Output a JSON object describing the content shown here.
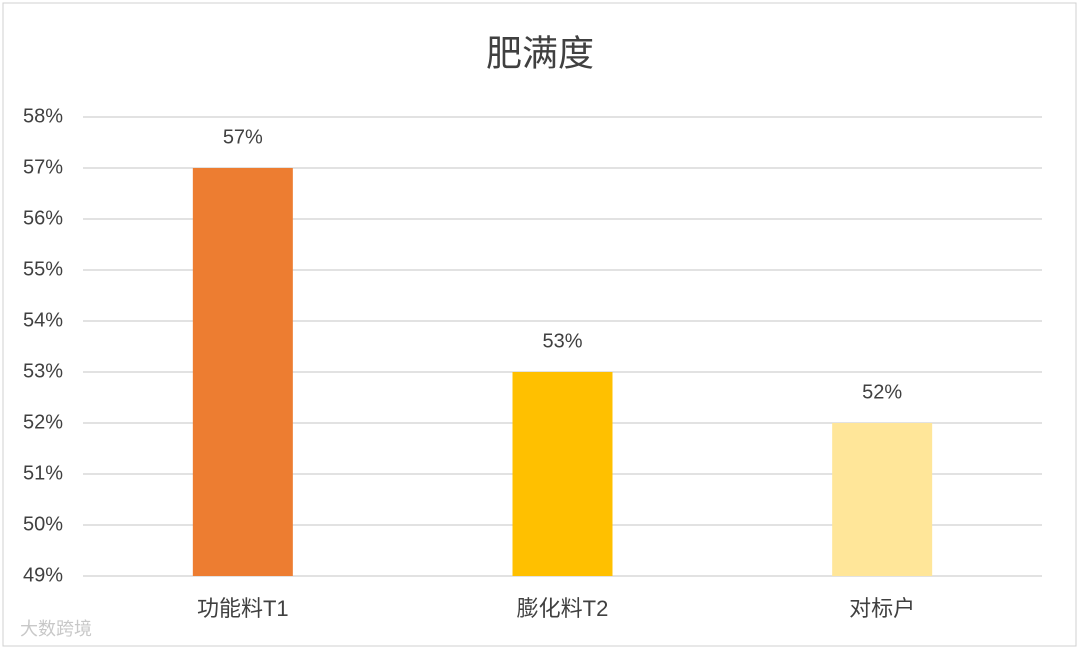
{
  "chart_data": {
    "type": "bar",
    "title": "肥满度",
    "categories": [
      "功能料T1",
      "膨化料T2",
      "对标户"
    ],
    "values": [
      57,
      53,
      52
    ],
    "value_labels": [
      "57%",
      "53%",
      "52%"
    ],
    "colors": [
      "#ed7d31",
      "#ffc000",
      "#ffe699"
    ],
    "ylim": [
      49,
      58
    ],
    "yticks": [
      {
        "value": 49,
        "label": "49%"
      },
      {
        "value": 50,
        "label": "50%"
      },
      {
        "value": 51,
        "label": "51%"
      },
      {
        "value": 52,
        "label": "52%"
      },
      {
        "value": 53,
        "label": "53%"
      },
      {
        "value": 54,
        "label": "54%"
      },
      {
        "value": 55,
        "label": "55%"
      },
      {
        "value": 56,
        "label": "56%"
      },
      {
        "value": 57,
        "label": "57%"
      },
      {
        "value": 58,
        "label": "58%"
      }
    ],
    "grid": true,
    "watermark": "大数跨境"
  }
}
